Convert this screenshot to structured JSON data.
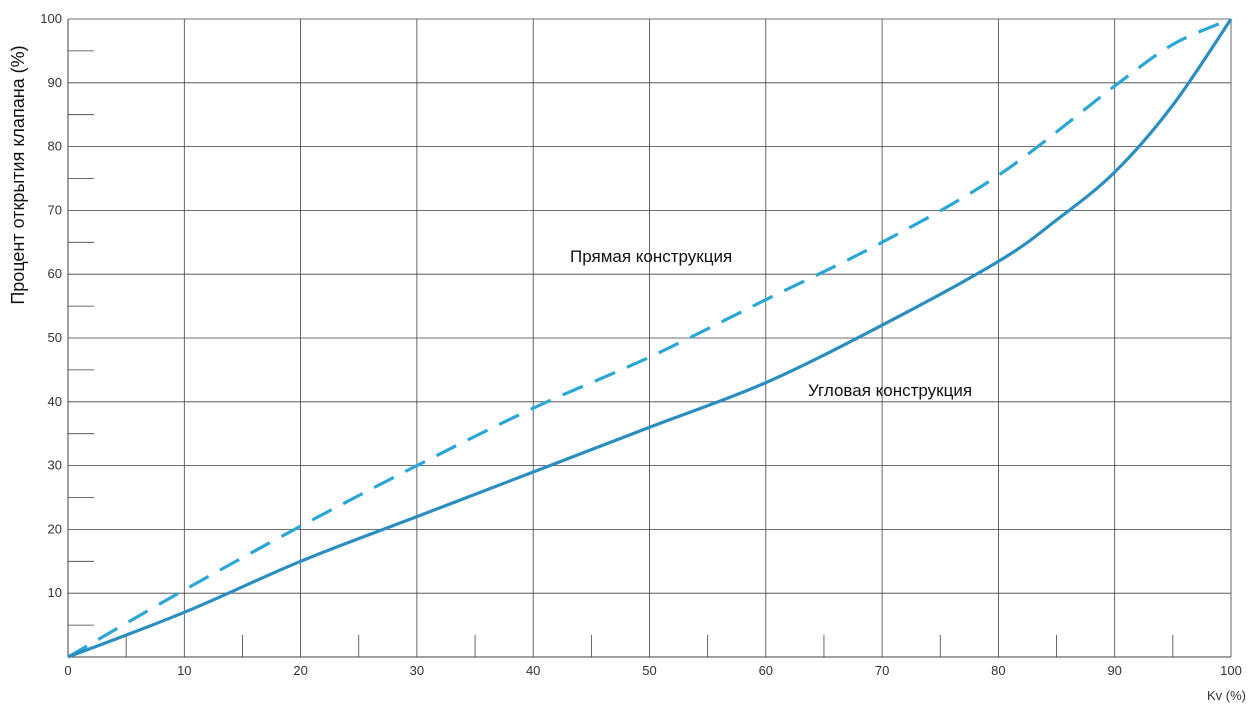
{
  "chart_data": {
    "type": "line",
    "ylabel": "Процент открытия клапана (%)",
    "xlabel": "Kv (%)",
    "xlim": [
      0,
      100
    ],
    "ylim": [
      0,
      100
    ],
    "x_ticks": [
      0,
      10,
      20,
      30,
      40,
      50,
      60,
      70,
      80,
      90,
      100
    ],
    "y_ticks": [
      10,
      20,
      30,
      40,
      50,
      60,
      70,
      80,
      90,
      100
    ],
    "grid": true,
    "colors": {
      "series": "#2a8ec0",
      "dashed": "#2aa7d6",
      "grid": "#404040",
      "axis": "#404040"
    },
    "series": [
      {
        "name": "Прямая конструкция",
        "style": "dashed",
        "x": [
          0,
          10,
          20,
          30,
          40,
          50,
          60,
          70,
          80,
          90,
          95,
          100
        ],
        "y": [
          0,
          10.5,
          20.5,
          30,
          39,
          47,
          56,
          65,
          75.5,
          89.5,
          96,
          100
        ]
      },
      {
        "name": "Угловая конструкция",
        "style": "solid",
        "x": [
          0,
          10,
          20,
          30,
          40,
          50,
          60,
          70,
          80,
          85,
          90,
          95,
          100
        ],
        "y": [
          0,
          7,
          15,
          22,
          29,
          36,
          43,
          52,
          62,
          68.5,
          76,
          86.5,
          100
        ]
      }
    ]
  }
}
